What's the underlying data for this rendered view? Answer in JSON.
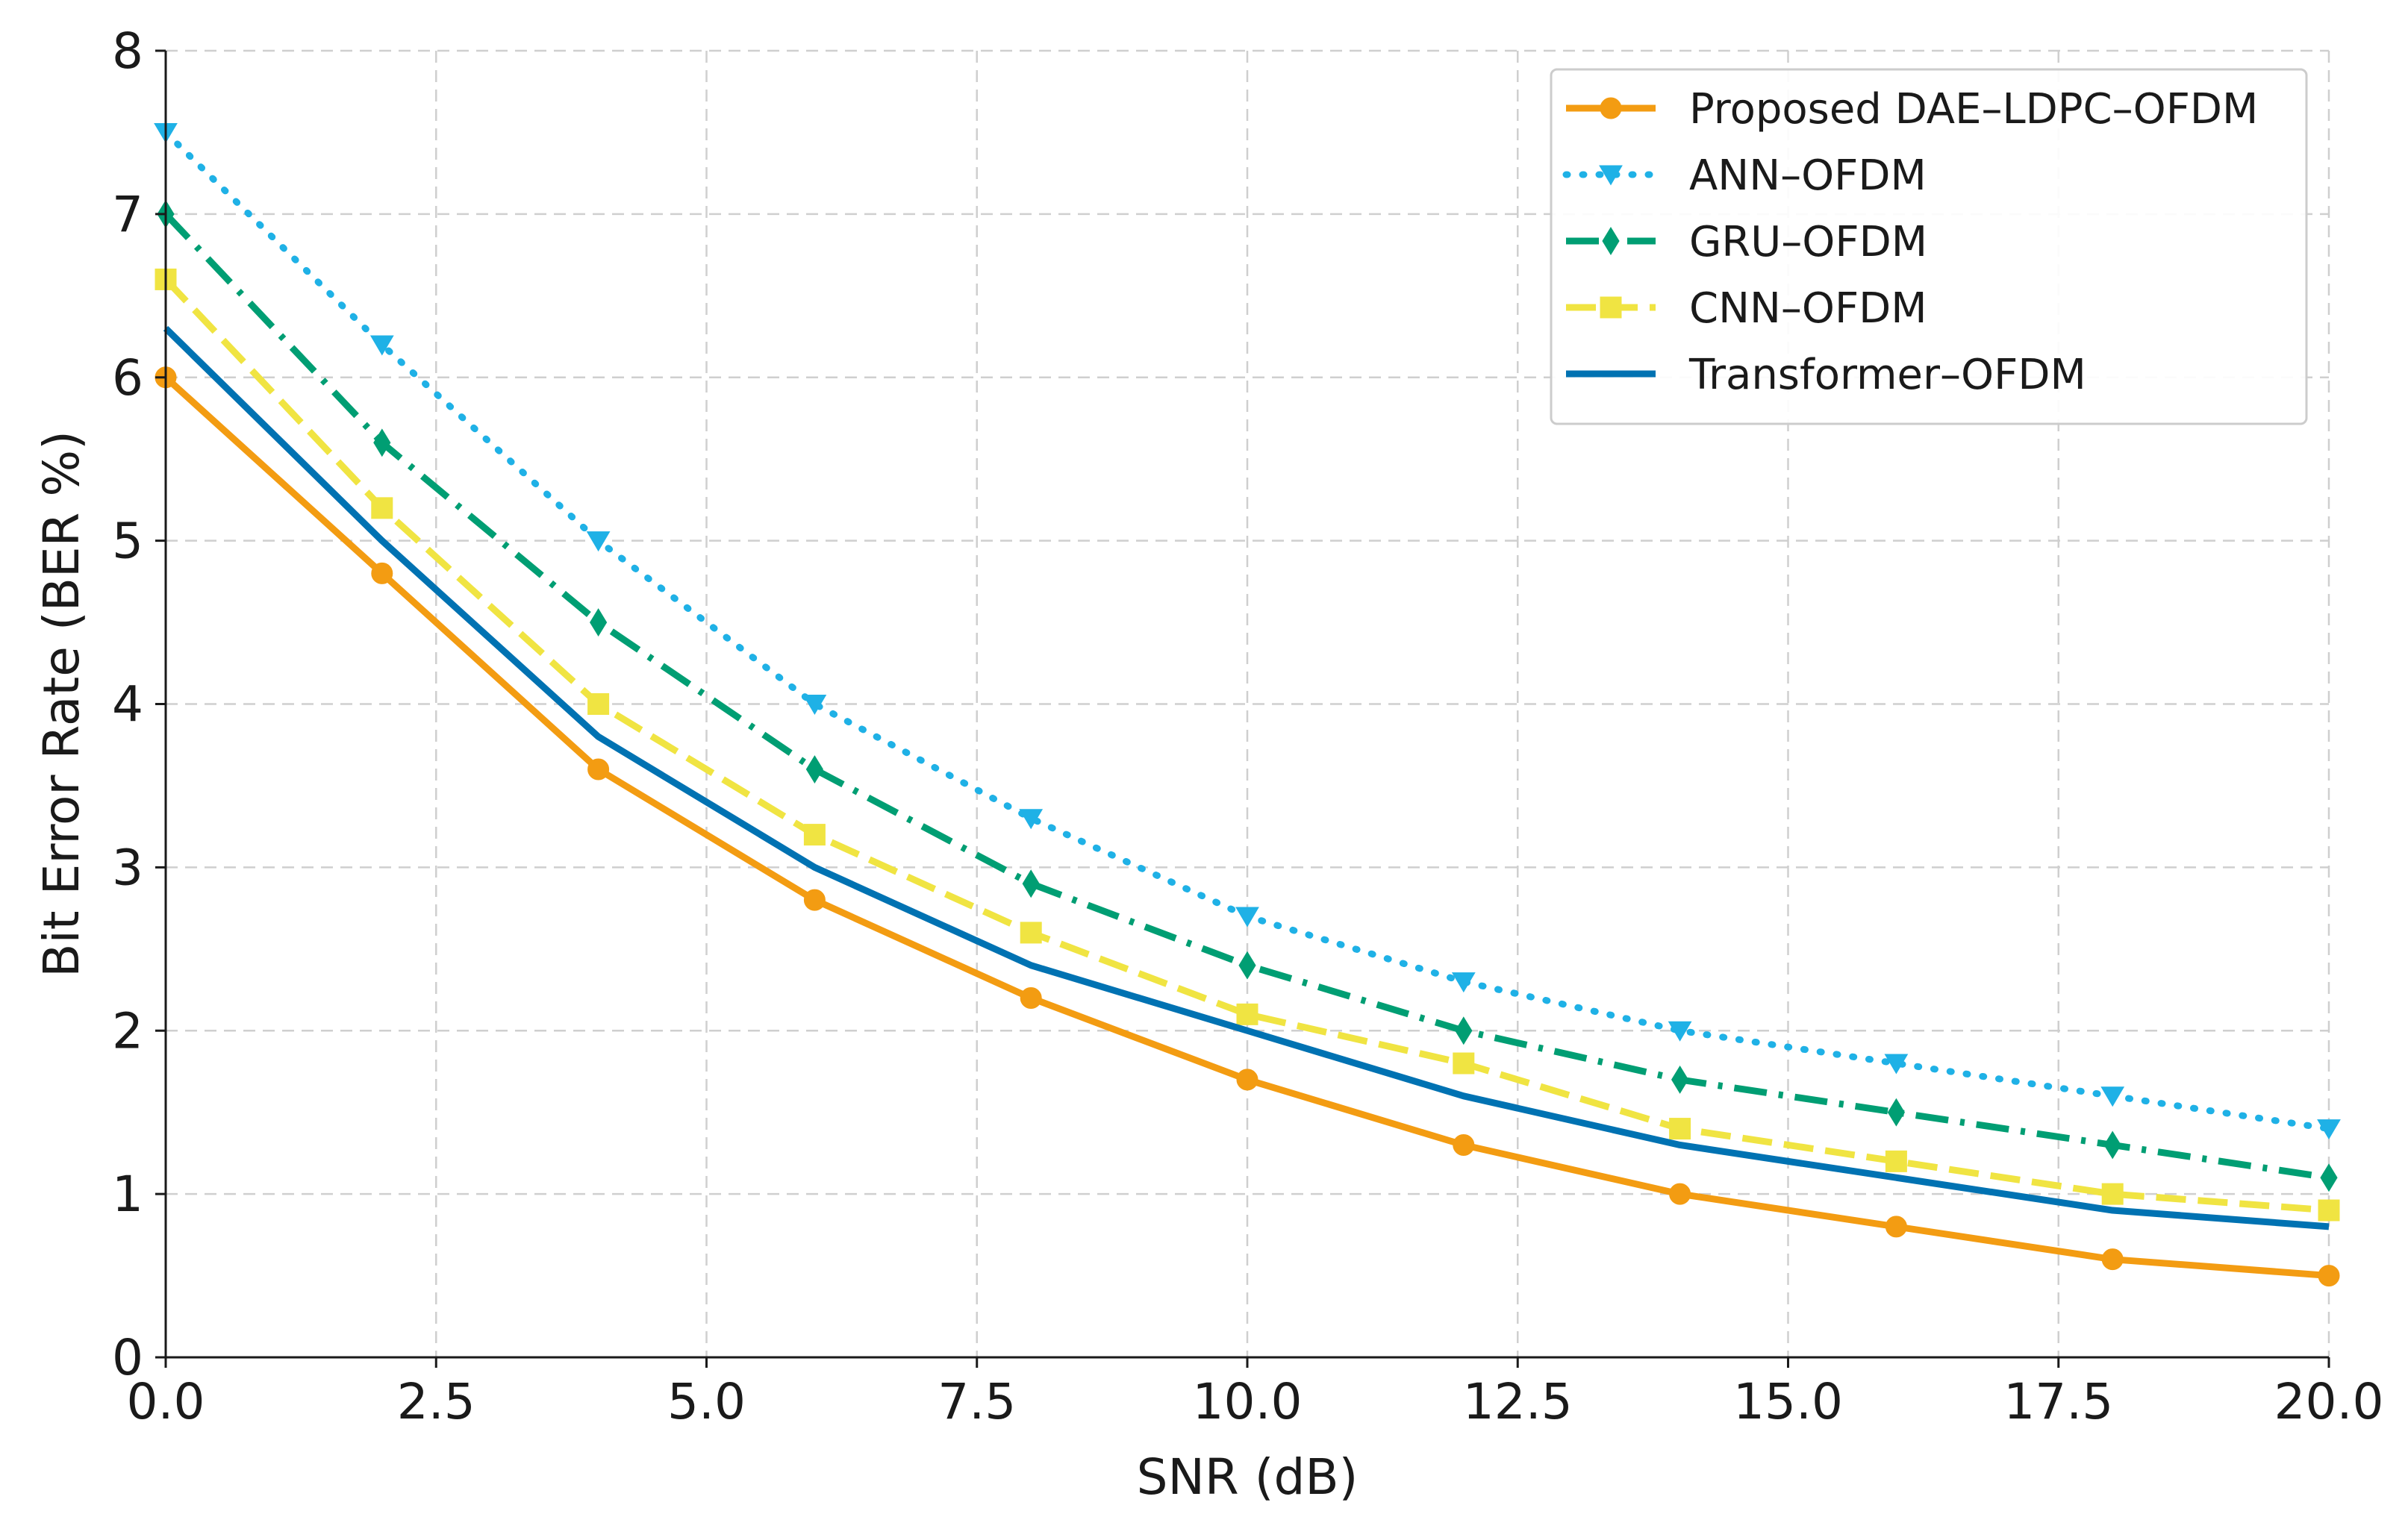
{
  "chart_data": {
    "type": "line",
    "title": "",
    "xlabel": "SNR (dB)",
    "ylabel": "Bit Error Rate (BER %)",
    "xlim": [
      0,
      20
    ],
    "ylim": [
      0,
      8
    ],
    "grid": true,
    "legend_position": "top-right",
    "x_ticks": [
      "0.0",
      "2.5",
      "5.0",
      "7.5",
      "10.0",
      "12.5",
      "15.0",
      "17.5",
      "20.0"
    ],
    "x_tick_values": [
      0,
      2.5,
      5,
      7.5,
      10,
      12.5,
      15,
      17.5,
      20
    ],
    "y_ticks": [
      "0",
      "1",
      "2",
      "3",
      "4",
      "5",
      "6",
      "7",
      "8"
    ],
    "y_tick_values": [
      0,
      1,
      2,
      3,
      4,
      5,
      6,
      7,
      8
    ],
    "x": [
      0,
      2,
      4,
      6,
      8,
      10,
      12,
      14,
      16,
      18,
      20
    ],
    "series": [
      {
        "name": "Proposed DAE–LDPC–OFDM",
        "color": "#F39C12",
        "line_style": "solid",
        "marker": "circle",
        "values": [
          6.0,
          4.8,
          3.6,
          2.8,
          2.2,
          1.7,
          1.3,
          1.0,
          0.8,
          0.6,
          0.5
        ]
      },
      {
        "name": "ANN–OFDM",
        "color": "#1FB1E6",
        "line_style": "dotted",
        "marker": "triangle-down",
        "values": [
          7.5,
          6.2,
          5.0,
          4.0,
          3.3,
          2.7,
          2.3,
          2.0,
          1.8,
          1.6,
          1.4
        ]
      },
      {
        "name": "GRU–OFDM",
        "color": "#009E73",
        "line_style": "dashdot",
        "marker": "thin-diamond",
        "values": [
          7.0,
          5.6,
          4.5,
          3.6,
          2.9,
          2.4,
          2.0,
          1.7,
          1.5,
          1.3,
          1.1
        ]
      },
      {
        "name": "CNN–OFDM",
        "color": "#F0E442",
        "line_style": "dashed",
        "marker": "square",
        "values": [
          6.6,
          5.2,
          4.0,
          3.2,
          2.6,
          2.1,
          1.8,
          1.4,
          1.2,
          1.0,
          0.9
        ]
      },
      {
        "name": "Transformer–OFDM",
        "color": "#0072B2",
        "line_style": "solid",
        "marker": "none",
        "values": [
          6.3,
          5.0,
          3.8,
          3.0,
          2.4,
          2.0,
          1.6,
          1.3,
          1.1,
          0.9,
          0.8
        ]
      }
    ]
  }
}
